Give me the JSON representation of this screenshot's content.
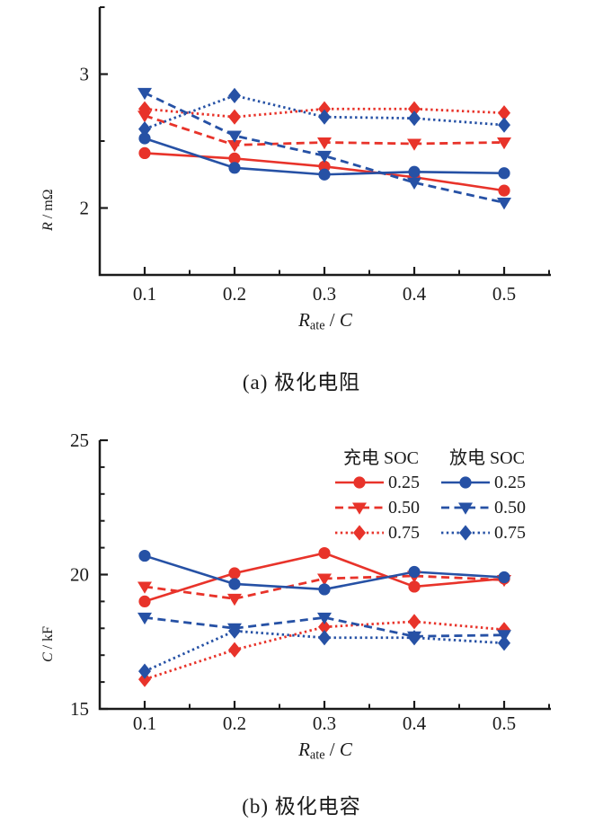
{
  "figure": {
    "panel_a": {
      "caption": "(a) 极化电阻",
      "ylabel_sym": "R",
      "ylabel_rest": " / mΩ",
      "xlabel_sym": "R",
      "xlabel_sub": "ate",
      "xlabel_mid": " / ",
      "xlabel_sym2": "C"
    },
    "panel_b": {
      "caption": "(b) 极化电容",
      "ylabel_sym": "C",
      "ylabel_rest": " / kF",
      "xlabel_sym": "R",
      "xlabel_sub": "ate",
      "xlabel_mid": " / ",
      "xlabel_sym2": "C"
    }
  },
  "colors": {
    "charge_red": "#e8332a",
    "discharge_blue": "#2651a5",
    "axis": "#1a1a1a"
  },
  "legend": {
    "columns": [
      {
        "header": "充电 SOC",
        "entries": [
          {
            "label": "0.25",
            "series": 0
          },
          {
            "label": "0.50",
            "series": 1
          },
          {
            "label": "0.75",
            "series": 2
          }
        ]
      },
      {
        "header": "放电 SOC",
        "entries": [
          {
            "label": "0.25",
            "series": 3
          },
          {
            "label": "0.50",
            "series": 4
          },
          {
            "label": "0.75",
            "series": 5
          }
        ]
      }
    ]
  },
  "chart_data": [
    {
      "type": "line",
      "panel": "a",
      "title": "(a) 极化电阻",
      "xlabel": "Rate / C",
      "ylabel": "R / mΩ",
      "x": [
        0.1,
        0.2,
        0.3,
        0.4,
        0.5
      ],
      "xlim": [
        0.05,
        0.552
      ],
      "ylim": [
        1.5,
        3.5
      ],
      "xticks": [
        0.1,
        0.2,
        0.3,
        0.4,
        0.5
      ],
      "xtick_labels": [
        "0.1",
        "0.2",
        "0.3",
        "0.4",
        "0.5"
      ],
      "xminor": [
        0.15,
        0.25,
        0.35,
        0.45,
        0.55
      ],
      "yticks": [
        2,
        3
      ],
      "ytick_labels": [
        "2",
        "3"
      ],
      "yminor": [
        2.5,
        3.5
      ],
      "grid": false,
      "series": [
        {
          "name": "充电 SOC 0.25",
          "color": "#e8332a",
          "line": "solid",
          "marker": "circle",
          "values": [
            2.41,
            2.37,
            2.31,
            2.23,
            2.13
          ]
        },
        {
          "name": "充电 SOC 0.50",
          "color": "#e8332a",
          "line": "dashed",
          "marker": "triangle-down",
          "values": [
            2.69,
            2.47,
            2.49,
            2.48,
            2.49
          ]
        },
        {
          "name": "充电 SOC 0.75",
          "color": "#e8332a",
          "line": "dotted",
          "marker": "diamond",
          "values": [
            2.74,
            2.68,
            2.74,
            2.74,
            2.71
          ]
        },
        {
          "name": "放电 SOC 0.25",
          "color": "#2651a5",
          "line": "solid",
          "marker": "circle",
          "values": [
            2.52,
            2.3,
            2.25,
            2.27,
            2.26
          ]
        },
        {
          "name": "放电 SOC 0.50",
          "color": "#2651a5",
          "line": "dashed",
          "marker": "triangle-down",
          "values": [
            2.86,
            2.54,
            2.39,
            2.19,
            2.04
          ]
        },
        {
          "name": "放电 SOC 0.75",
          "color": "#2651a5",
          "line": "dotted",
          "marker": "diamond",
          "values": [
            2.59,
            2.84,
            2.68,
            2.67,
            2.62
          ]
        }
      ]
    },
    {
      "type": "line",
      "panel": "b",
      "title": "(b) 极化电容",
      "xlabel": "Rate / C",
      "ylabel": "C / kF",
      "x": [
        0.1,
        0.2,
        0.3,
        0.4,
        0.5
      ],
      "xlim": [
        0.05,
        0.552
      ],
      "ylim": [
        15,
        25
      ],
      "xticks": [
        0.1,
        0.2,
        0.3,
        0.4,
        0.5
      ],
      "xtick_labels": [
        "0.1",
        "0.2",
        "0.3",
        "0.4",
        "0.5"
      ],
      "xminor": [
        0.15,
        0.25,
        0.35,
        0.45,
        0.55
      ],
      "yticks": [
        15,
        20,
        25
      ],
      "ytick_labels": [
        "15",
        "20",
        "25"
      ],
      "yminor": [
        16,
        17,
        18,
        19,
        21,
        22,
        23,
        24
      ],
      "grid": false,
      "legend_position": "top-right",
      "series": [
        {
          "name": "充电 SOC 0.25",
          "color": "#e8332a",
          "line": "solid",
          "marker": "circle",
          "values": [
            19.0,
            20.05,
            20.8,
            19.55,
            19.85
          ]
        },
        {
          "name": "充电 SOC 0.50",
          "color": "#e8332a",
          "line": "dashed",
          "marker": "triangle-down",
          "values": [
            19.55,
            19.1,
            19.85,
            19.95,
            19.8
          ]
        },
        {
          "name": "充电 SOC 0.75",
          "color": "#e8332a",
          "line": "dotted",
          "marker": "diamond",
          "values": [
            16.1,
            17.2,
            18.05,
            18.25,
            17.95
          ]
        },
        {
          "name": "放电 SOC 0.25",
          "color": "#2651a5",
          "line": "solid",
          "marker": "circle",
          "values": [
            20.7,
            19.65,
            19.45,
            20.1,
            19.9
          ]
        },
        {
          "name": "放电 SOC 0.50",
          "color": "#2651a5",
          "line": "dashed",
          "marker": "triangle-down",
          "values": [
            18.4,
            18.0,
            18.4,
            17.7,
            17.75
          ]
        },
        {
          "name": "放电 SOC 0.75",
          "color": "#2651a5",
          "line": "dotted",
          "marker": "diamond",
          "values": [
            16.4,
            17.9,
            17.65,
            17.65,
            17.45
          ]
        }
      ]
    }
  ]
}
